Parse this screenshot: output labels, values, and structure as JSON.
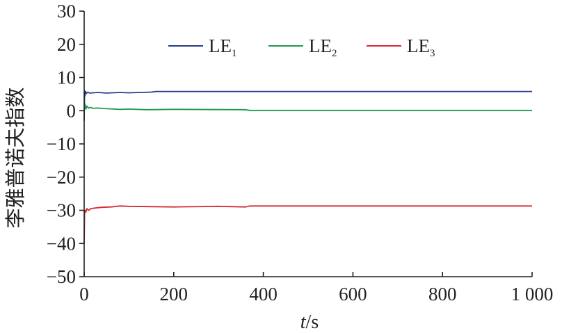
{
  "chart_data": {
    "type": "line",
    "xlabel_var": "t",
    "xlabel_unit": "/s",
    "ylabel": "李雅普诺夫指数",
    "xlim": [
      0,
      1000
    ],
    "ylim": [
      -50,
      30
    ],
    "xticks": [
      0,
      200,
      400,
      600,
      800,
      1000
    ],
    "xtick_labels": [
      "0",
      "200",
      "400",
      "600",
      "800",
      "1 000"
    ],
    "yticks": [
      30,
      20,
      10,
      0,
      -10,
      -20,
      -30,
      -40,
      -50
    ],
    "ytick_labels": [
      "30",
      "20",
      "10",
      "0",
      "−10",
      "−20",
      "−30",
      "−40",
      "−50"
    ],
    "grid": false,
    "legend_position": "top",
    "series": [
      {
        "name": "LE",
        "name_sub": "1",
        "color": "#2a3a8c",
        "x": [
          0,
          1,
          2,
          3,
          5,
          8,
          12,
          20,
          30,
          50,
          80,
          100,
          150,
          160,
          300,
          500,
          700,
          1000
        ],
        "y": [
          -3,
          6,
          4.5,
          5.8,
          5.2,
          5.6,
          5.3,
          5.4,
          5.5,
          5.3,
          5.5,
          5.4,
          5.6,
          5.8,
          5.8,
          5.8,
          5.8,
          5.8
        ]
      },
      {
        "name": "LE",
        "name_sub": "2",
        "color": "#1f9a4e",
        "x": [
          0,
          2,
          4,
          6,
          10,
          15,
          20,
          30,
          50,
          80,
          100,
          140,
          200,
          360,
          370,
          500,
          700,
          1000
        ],
        "y": [
          0,
          2,
          0.5,
          1.4,
          0.8,
          1.0,
          0.7,
          0.8,
          0.6,
          0.4,
          0.5,
          0.3,
          0.4,
          0.3,
          0.1,
          0.1,
          0.1,
          0.1
        ]
      },
      {
        "name": "LE",
        "name_sub": "3",
        "color": "#d62a33",
        "x": [
          0,
          1,
          2,
          4,
          6,
          10,
          15,
          25,
          40,
          60,
          80,
          100,
          200,
          300,
          360,
          370,
          450,
          600,
          800,
          1000
        ],
        "y": [
          -40,
          -31,
          -30,
          -30.5,
          -29.5,
          -30,
          -29.5,
          -29.3,
          -29.1,
          -29.0,
          -28.7,
          -28.8,
          -29.0,
          -28.8,
          -29.0,
          -28.7,
          -28.7,
          -28.7,
          -28.7,
          -28.7
        ]
      }
    ]
  }
}
